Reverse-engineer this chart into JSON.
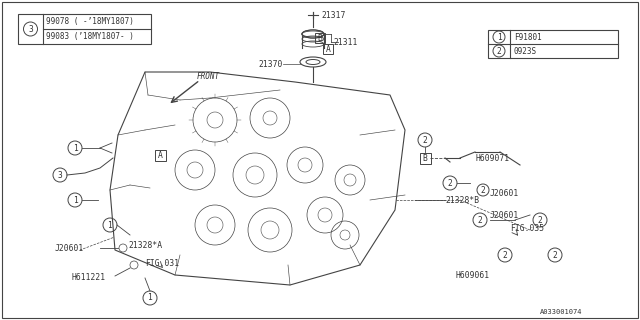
{
  "bg_color": "#ffffff",
  "line_color": "#444444",
  "text_color": "#333333",
  "legend_left_rows": [
    "99078 ( -’18MY1807)",
    "99083 (’18MY1807- )"
  ],
  "legend_right_rows": [
    [
      "1",
      "F91801"
    ],
    [
      "2",
      "0923S"
    ]
  ],
  "doc_number": "A033001074"
}
